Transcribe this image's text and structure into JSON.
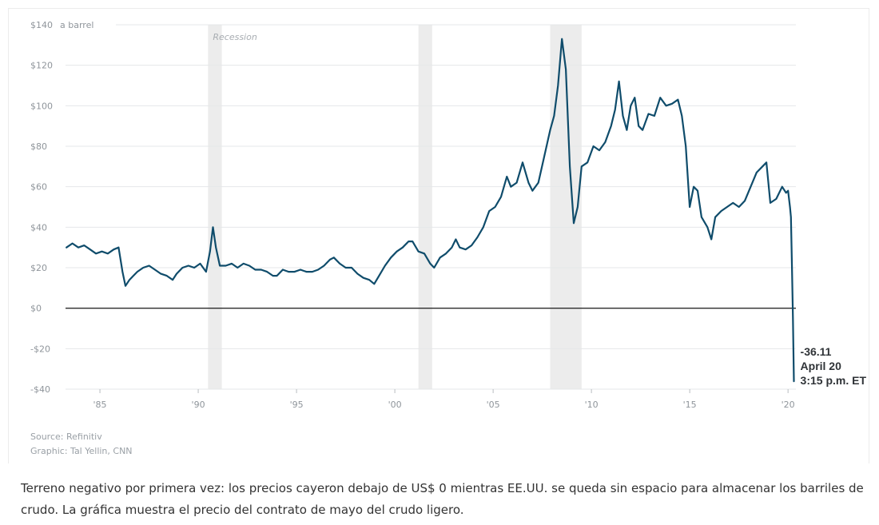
{
  "chart_data": {
    "type": "line",
    "ylabel": "a barrel",
    "ylim": [
      -40,
      140
    ],
    "xlim": [
      1983.25,
      2020.4
    ],
    "y_ticks": [
      {
        "value": 140,
        "label": "$140"
      },
      {
        "value": 120,
        "label": "$120"
      },
      {
        "value": 100,
        "label": "$100"
      },
      {
        "value": 80,
        "label": "$80"
      },
      {
        "value": 60,
        "label": "$60"
      },
      {
        "value": 40,
        "label": "$40"
      },
      {
        "value": 20,
        "label": "$20"
      },
      {
        "value": 0,
        "label": "$0"
      },
      {
        "value": -20,
        "label": "-$20"
      },
      {
        "value": -40,
        "label": "-$40"
      }
    ],
    "x_ticks": [
      {
        "value": 1985,
        "label": "'85"
      },
      {
        "value": 1990,
        "label": "'90"
      },
      {
        "value": 1995,
        "label": "'95"
      },
      {
        "value": 2000,
        "label": "'00"
      },
      {
        "value": 2005,
        "label": "'05"
      },
      {
        "value": 2010,
        "label": "'10"
      },
      {
        "value": 2015,
        "label": "'15"
      },
      {
        "value": 2020,
        "label": "'20"
      }
    ],
    "grid": true,
    "recessions": [
      {
        "start": 1990.5,
        "end": 1991.2,
        "label": "Recession"
      },
      {
        "start": 2001.2,
        "end": 2001.9,
        "label": ""
      },
      {
        "start": 2007.9,
        "end": 2009.5,
        "label": ""
      }
    ],
    "annotation": {
      "x": 2020.3,
      "y": -36.11,
      "lines": [
        "-36.11",
        "April 20",
        "3:15 p.m. ET"
      ]
    },
    "series": [
      {
        "color": "#0f4c6b",
        "x": [
          1983.3,
          1983.6,
          1983.9,
          1984.2,
          1984.5,
          1984.8,
          1985.1,
          1985.4,
          1985.7,
          1985.95,
          1986.15,
          1986.3,
          1986.5,
          1986.7,
          1986.9,
          1987.2,
          1987.5,
          1987.8,
          1988.1,
          1988.4,
          1988.7,
          1988.9,
          1989.2,
          1989.5,
          1989.8,
          1990.1,
          1990.4,
          1990.6,
          1990.75,
          1990.9,
          1991.1,
          1991.4,
          1991.7,
          1992.0,
          1992.3,
          1992.6,
          1992.9,
          1993.2,
          1993.5,
          1993.8,
          1994.0,
          1994.3,
          1994.6,
          1994.9,
          1995.2,
          1995.5,
          1995.8,
          1996.1,
          1996.4,
          1996.7,
          1996.9,
          1997.2,
          1997.5,
          1997.8,
          1998.1,
          1998.4,
          1998.7,
          1998.95,
          1999.2,
          1999.5,
          1999.8,
          2000.1,
          2000.4,
          2000.7,
          2000.9,
          2001.2,
          2001.5,
          2001.8,
          2002.0,
          2002.3,
          2002.6,
          2002.9,
          2003.1,
          2003.3,
          2003.6,
          2003.9,
          2004.2,
          2004.5,
          2004.8,
          2005.1,
          2005.4,
          2005.7,
          2005.9,
          2006.2,
          2006.5,
          2006.8,
          2007.0,
          2007.3,
          2007.6,
          2007.9,
          2008.1,
          2008.3,
          2008.5,
          2008.7,
          2008.9,
          2009.1,
          2009.3,
          2009.5,
          2009.8,
          2010.1,
          2010.4,
          2010.7,
          2011.0,
          2011.2,
          2011.4,
          2011.6,
          2011.8,
          2012.0,
          2012.2,
          2012.4,
          2012.6,
          2012.9,
          2013.2,
          2013.5,
          2013.8,
          2014.1,
          2014.4,
          2014.6,
          2014.8,
          2015.0,
          2015.2,
          2015.4,
          2015.6,
          2015.9,
          2016.1,
          2016.3,
          2016.6,
          2016.9,
          2017.2,
          2017.5,
          2017.8,
          2018.1,
          2018.4,
          2018.7,
          2018.9,
          2019.1,
          2019.4,
          2019.7,
          2019.9,
          2020.0,
          2020.1,
          2020.15,
          2020.2,
          2020.25,
          2020.3
        ],
        "values": [
          30,
          32,
          30,
          31,
          29,
          27,
          28,
          27,
          29,
          30,
          18,
          11,
          14,
          16,
          18,
          20,
          21,
          19,
          17,
          16,
          14,
          17,
          20,
          21,
          20,
          22,
          18,
          28,
          40,
          30,
          21,
          21,
          22,
          20,
          22,
          21,
          19,
          19,
          18,
          16,
          16,
          19,
          18,
          18,
          19,
          18,
          18,
          19,
          21,
          24,
          25,
          22,
          20,
          20,
          17,
          15,
          14,
          12,
          16,
          21,
          25,
          28,
          30,
          33,
          33,
          28,
          27,
          22,
          20,
          25,
          27,
          30,
          34,
          30,
          29,
          31,
          35,
          40,
          48,
          50,
          55,
          65,
          60,
          62,
          72,
          62,
          58,
          62,
          75,
          88,
          95,
          110,
          133,
          118,
          70,
          42,
          50,
          70,
          72,
          80,
          78,
          82,
          90,
          98,
          112,
          95,
          88,
          100,
          104,
          90,
          88,
          96,
          95,
          104,
          100,
          101,
          103,
          95,
          80,
          50,
          60,
          58,
          45,
          40,
          34,
          45,
          48,
          50,
          52,
          50,
          53,
          60,
          67,
          70,
          72,
          52,
          54,
          60,
          57,
          58,
          50,
          45,
          20,
          -5,
          -36.11
        ]
      }
    ]
  },
  "source": "Source: Refinitiv",
  "credit": "Graphic: Tal Yellin, CNN",
  "caption": "Terreno negativo por primera vez: los precios cayeron debajo de US$ 0 mientras EE.UU. se queda sin espacio para almacenar los barriles de crudo. La gráfica muestra el precio del contrato de mayo del crudo ligero."
}
